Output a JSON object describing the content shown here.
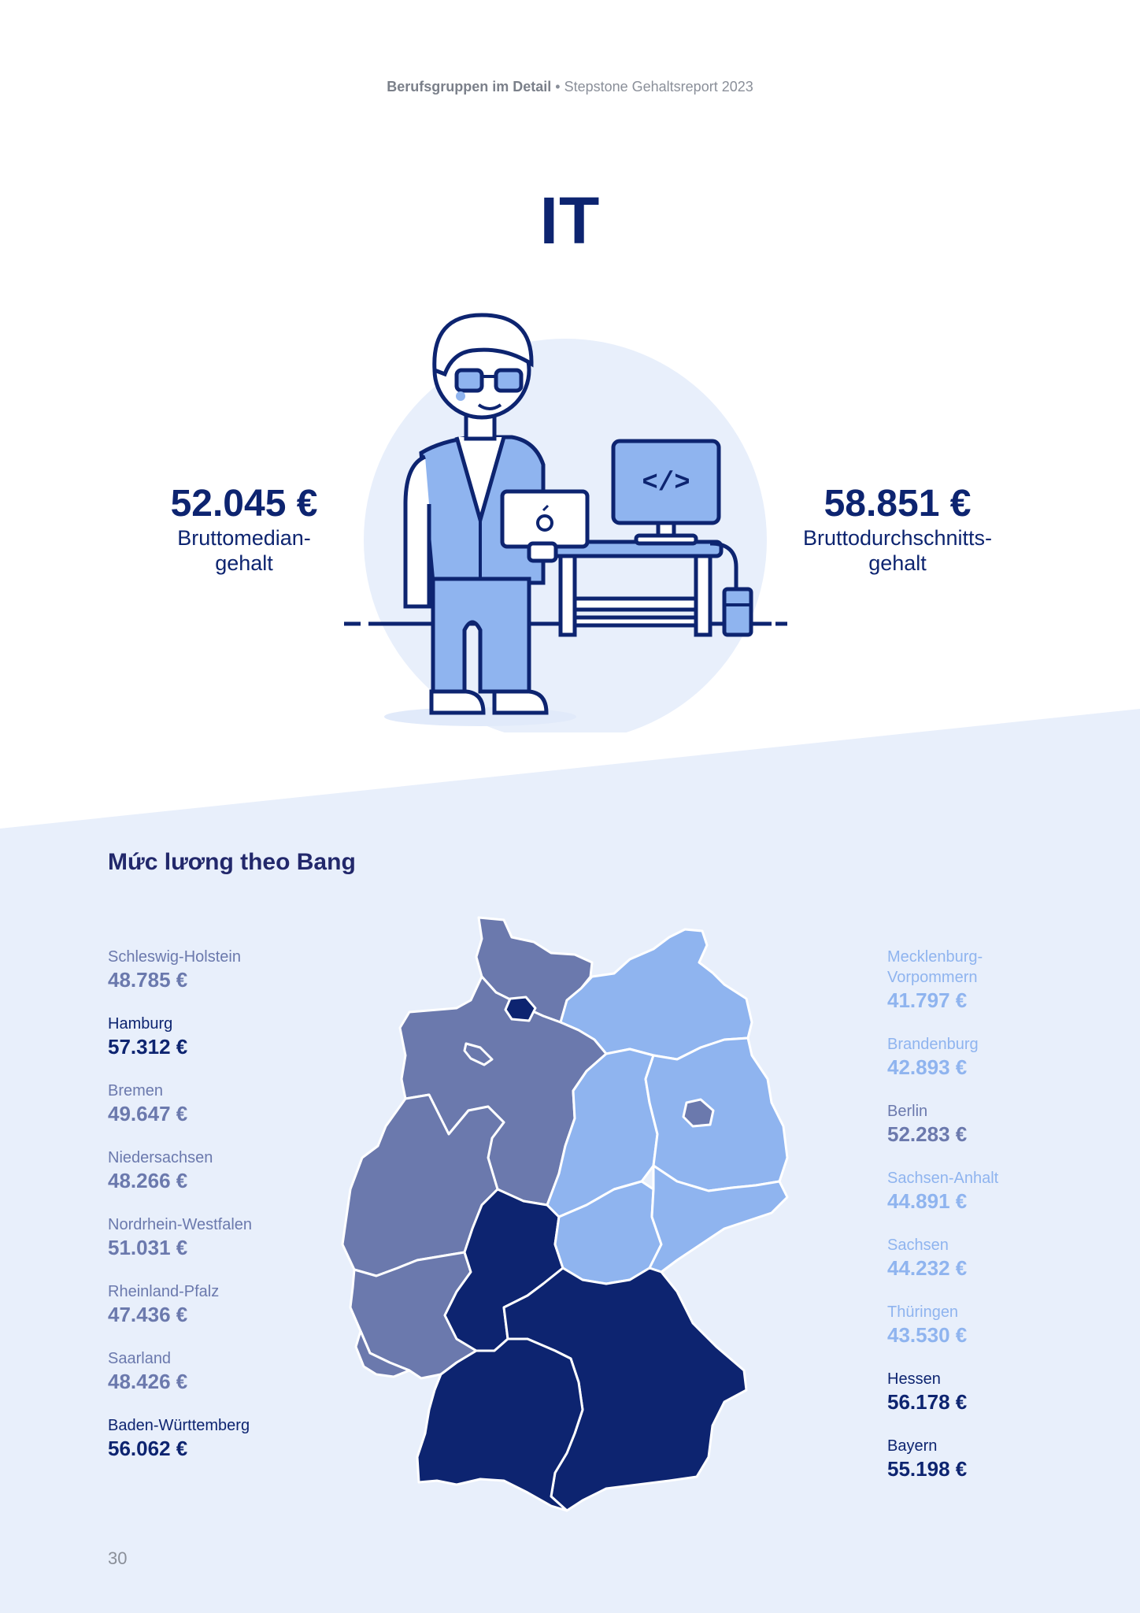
{
  "header": {
    "section": "Berufsgruppen im Detail",
    "separator": " • ",
    "report": "Stepstone Gehaltsreport 2023"
  },
  "title": "IT",
  "median": {
    "value": "52.045 €",
    "label_line1": "Bruttomedian-",
    "label_line2": "gehalt"
  },
  "average": {
    "value": "58.851 €",
    "label_line1": "Bruttodurchschnitts-",
    "label_line2": "gehalt"
  },
  "illustration": {
    "screen_code": "</>"
  },
  "section_title": "Mức lương theo Bang",
  "colors": {
    "dark": "#0d2470",
    "mid": "#6b79ad",
    "light": "#8fb4ef",
    "band": "#e8effb"
  },
  "regions_left": [
    {
      "name": "Schleswig-Holstein",
      "salary": "48.785 €",
      "tone": "mid"
    },
    {
      "name": "Hamburg",
      "salary": "57.312 €",
      "tone": "dark"
    },
    {
      "name": "Bremen",
      "salary": "49.647 €",
      "tone": "mid"
    },
    {
      "name": "Niedersachsen",
      "salary": "48.266 €",
      "tone": "mid"
    },
    {
      "name": "Nordrhein-Westfalen",
      "salary": "51.031 €",
      "tone": "mid"
    },
    {
      "name": "Rheinland-Pfalz",
      "salary": "47.436 €",
      "tone": "mid"
    },
    {
      "name": "Saarland",
      "salary": "48.426 €",
      "tone": "mid"
    },
    {
      "name": "Baden-Württemberg",
      "salary": "56.062 €",
      "tone": "dark"
    }
  ],
  "regions_right": [
    {
      "name": "Mecklenburg-Vorpommern",
      "name_line1": "Mecklenburg-",
      "name_line2": "Vorpommern",
      "salary": "41.797 €",
      "tone": "light"
    },
    {
      "name": "Brandenburg",
      "salary": "42.893 €",
      "tone": "light"
    },
    {
      "name": "Berlin",
      "salary": "52.283 €",
      "tone": "mid"
    },
    {
      "name": "Sachsen-Anhalt",
      "salary": "44.891 €",
      "tone": "light"
    },
    {
      "name": "Sachsen",
      "salary": "44.232 €",
      "tone": "light"
    },
    {
      "name": "Thüringen",
      "salary": "43.530 €",
      "tone": "light"
    },
    {
      "name": "Hessen",
      "salary": "56.178 €",
      "tone": "dark"
    },
    {
      "name": "Bayern",
      "salary": "55.198 €",
      "tone": "dark"
    }
  ],
  "page_number": "30"
}
